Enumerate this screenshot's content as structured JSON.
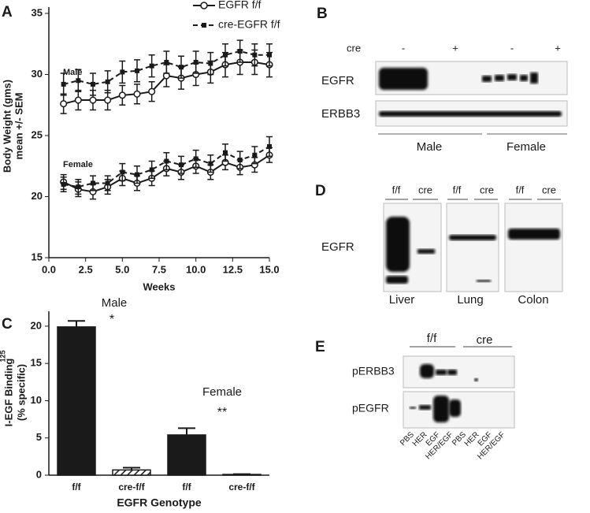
{
  "chart_data": [
    {
      "type": "line",
      "panel": "A",
      "ylabel": "Body Weight (gms)",
      "ylabel2": "mean +/- SEM",
      "xlabel": "Weeks",
      "annotations": [
        "Male",
        "Female"
      ],
      "x": [
        1,
        2,
        3,
        4,
        5,
        6,
        7,
        8,
        9,
        10,
        11,
        12,
        13,
        14,
        15
      ],
      "xlim": [
        0,
        15
      ],
      "xticks": [
        {
          "value": 0,
          "label": "0.0"
        },
        2.5,
        {
          "value": 5,
          "label": "5.0"
        },
        7.5,
        {
          "value": 10,
          "label": "10.0"
        },
        12.5,
        {
          "value": 15,
          "label": "15.0"
        }
      ],
      "ylim": [
        15,
        35
      ],
      "yticks": [
        15,
        20,
        25,
        30,
        35
      ],
      "series": [
        {
          "name": "EGFR f/f",
          "color": "#1a1a1a",
          "dash": false,
          "marker": "circle",
          "values": [
            27.6,
            27.9,
            27.9,
            27.9,
            28.3,
            28.4,
            28.6,
            29.9,
            29.7,
            30.0,
            30.2,
            30.8,
            31.0,
            31.0,
            30.8
          ],
          "errors": [
            0.8,
            0.8,
            0.8,
            0.8,
            0.8,
            0.8,
            0.8,
            0.9,
            0.9,
            0.9,
            0.9,
            1.0,
            1.0,
            1.0,
            1.0
          ]
        },
        {
          "name": "cre-EGFR f/f",
          "color": "#1a1a1a",
          "dash": true,
          "marker": "square",
          "values": [
            29.2,
            29.5,
            29.2,
            29.4,
            30.2,
            30.3,
            30.7,
            31.0,
            30.6,
            31.0,
            30.9,
            31.6,
            31.9,
            31.6,
            31.6
          ],
          "errors": [
            0.9,
            0.9,
            0.9,
            0.9,
            0.9,
            0.9,
            0.9,
            0.9,
            0.9,
            0.9,
            0.9,
            0.9,
            0.9,
            0.9,
            0.9
          ]
        },
        {
          "color": "#1a1a1a",
          "dash": false,
          "marker": "circle",
          "values": [
            21.2,
            20.6,
            20.4,
            20.8,
            21.5,
            21.1,
            21.5,
            22.3,
            22.0,
            22.5,
            22.0,
            22.8,
            22.4,
            22.6,
            23.4
          ],
          "errors": [
            0.6,
            0.6,
            0.6,
            0.6,
            0.6,
            0.6,
            0.6,
            0.6,
            0.6,
            0.6,
            0.6,
            0.6,
            0.6,
            0.6,
            0.6
          ]
        },
        {
          "color": "#1a1a1a",
          "dash": true,
          "marker": "square",
          "values": [
            21.0,
            20.8,
            21.1,
            21.1,
            22.0,
            21.8,
            22.2,
            22.9,
            22.6,
            23.1,
            22.7,
            23.6,
            23.0,
            23.4,
            24.1
          ],
          "errors": [
            0.6,
            0.6,
            0.6,
            0.6,
            0.7,
            0.7,
            0.7,
            0.7,
            0.7,
            0.7,
            0.7,
            0.7,
            0.7,
            0.7,
            0.8
          ]
        }
      ]
    },
    {
      "type": "bar",
      "panel": "C",
      "ylabel_sup": "125",
      "ylabel": "I-EGF Binding",
      "ylabel2": "(% specific)",
      "xlabel": "EGFR Genotype",
      "annotations": [
        "Male",
        "*",
        "Female",
        "**"
      ],
      "categories": [
        "f/f",
        "cre-f/f",
        "f/f",
        "cre-f/f"
      ],
      "values": [
        19.9,
        0.7,
        5.4,
        0.1
      ],
      "errors": [
        0.8,
        0.3,
        0.9,
        0.05
      ],
      "fills": [
        "solid",
        "hatch",
        "solid",
        "hatch"
      ],
      "color": "#1a1a1a",
      "ylim": [
        0,
        22
      ],
      "yticks": [
        0,
        5,
        10,
        15,
        20
      ]
    }
  ],
  "panel_b": {
    "label": "B",
    "cre": "cre",
    "lanes": [
      "-",
      "+",
      "-",
      "+"
    ],
    "rows": [
      "EGFR",
      "ERBB3"
    ],
    "groups": [
      "Male",
      "Female"
    ]
  },
  "panel_d": {
    "label": "D",
    "headers": [
      "f/f",
      "cre",
      "f/f",
      "cre",
      "f/f",
      "cre"
    ],
    "row": "EGFR",
    "tissues": [
      "Liver",
      "Lung",
      "Colon"
    ]
  },
  "panel_e": {
    "label": "E",
    "groups": [
      "f/f",
      "cre"
    ],
    "rows": [
      "pERBB3",
      "pEGFR"
    ],
    "lanes": [
      "PBS",
      "HER",
      "EGF",
      "HER/EGF",
      "PBS",
      "HER",
      "EGF",
      "HER/EGF"
    ]
  }
}
